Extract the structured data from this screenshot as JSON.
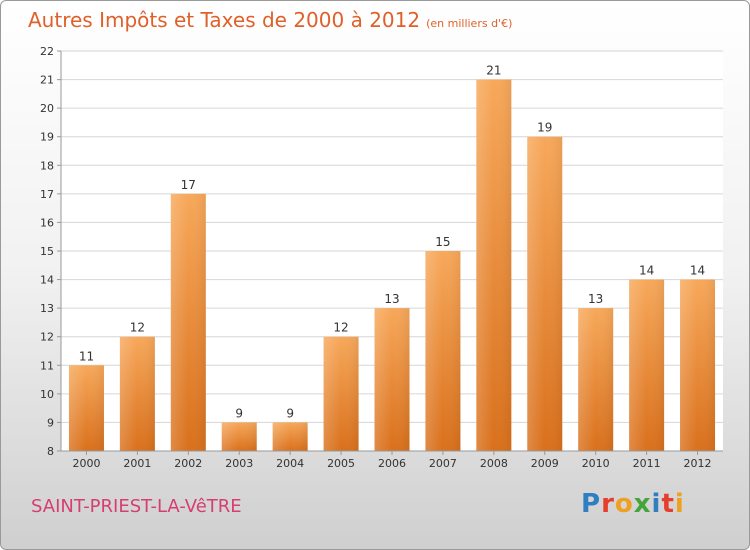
{
  "header": {
    "title": "Autres Impôts et Taxes de 2000 à 2012",
    "unit": "(en milliers d'€)"
  },
  "footer": {
    "commune": "SAINT-PRIEST-LA-VêTRE",
    "logo_letters": [
      "P",
      "r",
      "o",
      "x",
      "i",
      "t",
      "i"
    ],
    "logo_colors": [
      "#2e7ec1",
      "#e63d2f",
      "#f0a020",
      "#44a63a",
      "#2e7ec1",
      "#e63d2f",
      "#f0a020"
    ]
  },
  "colors": {
    "bar_top": "#f7a85a",
    "bar_bottom": "#d9701c",
    "axis_text": "#333333",
    "grid": "#d6d6d6"
  },
  "chart_data": {
    "type": "bar",
    "categories": [
      "2000",
      "2001",
      "2002",
      "2003",
      "2004",
      "2005",
      "2006",
      "2007",
      "2008",
      "2009",
      "2010",
      "2011",
      "2012"
    ],
    "values": [
      11,
      12,
      17,
      9,
      9,
      12,
      13,
      15,
      21,
      19,
      13,
      14,
      14
    ],
    "data_labels": [
      "11",
      "12",
      "17",
      "9",
      "9",
      "12",
      "13",
      "15",
      "21",
      "19",
      "13",
      "14",
      "14"
    ],
    "yticks": [
      "8",
      "9",
      "10",
      "11",
      "12",
      "13",
      "14",
      "15",
      "16",
      "17",
      "18",
      "19",
      "20",
      "21",
      "22"
    ],
    "title": "Autres Impôts et Taxes de 2000 à 2012",
    "xlabel": "",
    "ylabel": "",
    "ylim": [
      8,
      22
    ],
    "grid": true,
    "legend": "none"
  }
}
